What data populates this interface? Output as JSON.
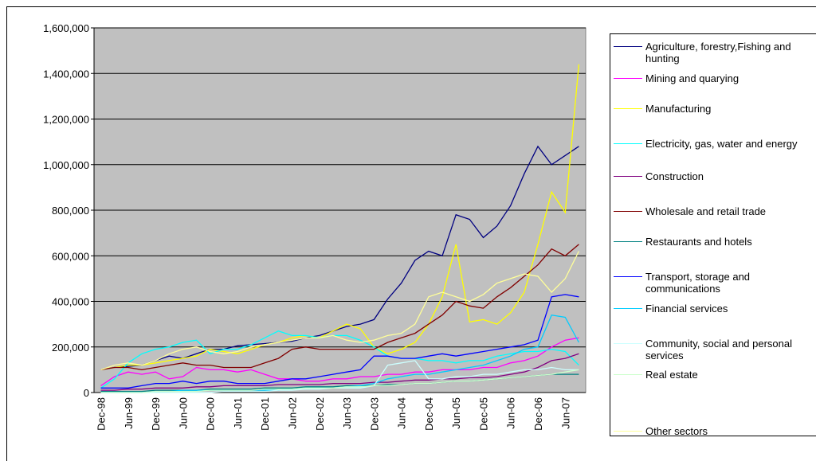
{
  "chart_data": {
    "type": "line",
    "categories": [
      "Dec-98",
      null,
      "Jun-99",
      null,
      "Dec-99",
      null,
      "Jun-00",
      null,
      "Dec-00",
      null,
      "Jun-01",
      null,
      "Dec-01",
      null,
      "Jun-02",
      null,
      "Dec-02",
      null,
      "Jun-03",
      null,
      "Dec-03",
      null,
      "Jun-04",
      null,
      "Dec-04",
      null,
      "Jun-05",
      null,
      "Dec-05",
      null,
      "Jun-06",
      null,
      "Dec-06",
      null,
      "Jun-07",
      null
    ],
    "ylim": [
      0,
      1600000
    ],
    "yticks": [
      0,
      {
        "value": 200000,
        "label": "200,000"
      },
      {
        "value": 400000,
        "label": "400,000"
      },
      {
        "value": 600000,
        "label": "600,000"
      },
      {
        "value": 800000,
        "label": "800,000"
      },
      {
        "value": 1000000,
        "label": "1,000,000"
      },
      {
        "value": 1200000,
        "label": "1,200,000"
      },
      {
        "value": 1400000,
        "label": "1,400,000"
      },
      {
        "value": 1600000,
        "label": "1,600,000"
      }
    ],
    "grid": true,
    "series": [
      {
        "name": "Agriculture, forestry,Fishing and hunting",
        "color": "#000080",
        "values": [
          100000,
          110000,
          115000,
          120000,
          140000,
          160000,
          150000,
          170000,
          190000,
          190000,
          205000,
          210000,
          215000,
          220000,
          225000,
          240000,
          250000,
          270000,
          290000,
          300000,
          320000,
          410000,
          480000,
          580000,
          620000,
          600000,
          780000,
          760000,
          680000,
          730000,
          820000,
          960000,
          1080000,
          1000000,
          1040000,
          1080000
        ]
      },
      {
        "name": "Mining  and quarying",
        "color": "#ff00ff",
        "values": [
          30000,
          70000,
          90000,
          80000,
          90000,
          60000,
          70000,
          110000,
          100000,
          100000,
          90000,
          100000,
          80000,
          60000,
          60000,
          50000,
          50000,
          60000,
          60000,
          70000,
          70000,
          80000,
          80000,
          90000,
          90000,
          100000,
          100000,
          100000,
          110000,
          110000,
          130000,
          140000,
          160000,
          200000,
          230000,
          240000
        ]
      },
      {
        "name": "Manufacturing",
        "color": "#ffff00",
        "values": [
          100000,
          110000,
          120000,
          120000,
          130000,
          140000,
          150000,
          160000,
          190000,
          180000,
          170000,
          190000,
          210000,
          220000,
          240000,
          250000,
          240000,
          270000,
          300000,
          280000,
          200000,
          170000,
          190000,
          220000,
          300000,
          420000,
          650000,
          310000,
          320000,
          300000,
          350000,
          440000,
          650000,
          880000,
          790000,
          1440000
        ]
      },
      {
        "name": "Electricity, gas, water and energy",
        "color": "#00ffff",
        "values": [
          20000,
          60000,
          130000,
          170000,
          190000,
          200000,
          220000,
          230000,
          170000,
          190000,
          190000,
          210000,
          240000,
          270000,
          250000,
          250000,
          240000,
          250000,
          250000,
          230000,
          200000,
          160000,
          150000,
          150000,
          140000,
          140000,
          130000,
          140000,
          140000,
          160000,
          170000,
          180000,
          180000,
          190000,
          180000,
          120000
        ]
      },
      {
        "name": "Construction",
        "color": "#800080",
        "values": [
          10000,
          10000,
          15000,
          15000,
          20000,
          20000,
          20000,
          25000,
          25000,
          30000,
          30000,
          30000,
          30000,
          35000,
          35000,
          35000,
          35000,
          40000,
          40000,
          40000,
          45000,
          45000,
          50000,
          55000,
          55000,
          60000,
          60000,
          65000,
          65000,
          70000,
          80000,
          90000,
          110000,
          140000,
          150000,
          170000
        ]
      },
      {
        "name": "Wholesale and retail trade",
        "color": "#800000",
        "values": [
          100000,
          110000,
          110000,
          100000,
          110000,
          120000,
          130000,
          120000,
          120000,
          110000,
          110000,
          110000,
          130000,
          150000,
          190000,
          200000,
          190000,
          190000,
          190000,
          190000,
          190000,
          220000,
          240000,
          260000,
          300000,
          340000,
          400000,
          380000,
          370000,
          420000,
          460000,
          510000,
          560000,
          630000,
          600000,
          650000
        ]
      },
      {
        "name": "Restaurants and hotels",
        "color": "#008080",
        "values": [
          5000,
          5000,
          5000,
          5000,
          10000,
          10000,
          10000,
          10000,
          15000,
          15000,
          15000,
          15000,
          20000,
          20000,
          20000,
          25000,
          25000,
          25000,
          30000,
          30000,
          30000,
          35000,
          35000,
          40000,
          40000,
          45000,
          50000,
          50000,
          55000,
          60000,
          65000,
          70000,
          75000,
          80000,
          80000,
          80000
        ]
      },
      {
        "name": "Transport, storage and communications",
        "color": "#0000ff",
        "values": [
          20000,
          20000,
          20000,
          30000,
          40000,
          40000,
          50000,
          40000,
          50000,
          50000,
          40000,
          40000,
          40000,
          50000,
          60000,
          60000,
          70000,
          80000,
          90000,
          100000,
          160000,
          160000,
          150000,
          150000,
          160000,
          170000,
          160000,
          170000,
          180000,
          190000,
          200000,
          210000,
          230000,
          420000,
          430000,
          420000
        ]
      },
      {
        "name": "Financial services",
        "color": "#00ccff",
        "values": [
          0,
          0,
          0,
          0,
          5000,
          5000,
          10000,
          10000,
          10000,
          10000,
          10000,
          10000,
          10000,
          10000,
          15000,
          20000,
          20000,
          20000,
          25000,
          30000,
          40000,
          60000,
          70000,
          80000,
          80000,
          90000,
          100000,
          110000,
          120000,
          140000,
          160000,
          190000,
          200000,
          340000,
          330000,
          220000
        ]
      },
      {
        "name": "Community, social and personal services",
        "color": "#ccffff",
        "values": [
          0,
          0,
          0,
          0,
          0,
          0,
          0,
          0,
          0,
          5000,
          5000,
          5000,
          5000,
          10000,
          10000,
          15000,
          15000,
          20000,
          20000,
          20000,
          30000,
          120000,
          130000,
          140000,
          60000,
          60000,
          70000,
          70000,
          80000,
          80000,
          90000,
          100000,
          100000,
          110000,
          100000,
          100000
        ]
      },
      {
        "name": "Real estate",
        "color": "#ccffcc",
        "values": [
          0,
          0,
          0,
          0,
          5000,
          5000,
          5000,
          5000,
          10000,
          10000,
          10000,
          10000,
          15000,
          15000,
          15000,
          20000,
          20000,
          20000,
          25000,
          25000,
          30000,
          30000,
          35000,
          40000,
          40000,
          45000,
          50000,
          50000,
          55000,
          60000,
          65000,
          70000,
          75000,
          80000,
          90000,
          100000
        ]
      },
      {
        "name": "Other sectors",
        "color": "#ffff99",
        "values": [
          100000,
          120000,
          130000,
          120000,
          140000,
          170000,
          190000,
          200000,
          180000,
          170000,
          180000,
          200000,
          210000,
          220000,
          230000,
          240000,
          240000,
          250000,
          230000,
          220000,
          230000,
          250000,
          260000,
          300000,
          420000,
          440000,
          420000,
          400000,
          430000,
          480000,
          500000,
          520000,
          510000,
          440000,
          500000,
          620000
        ]
      }
    ]
  }
}
